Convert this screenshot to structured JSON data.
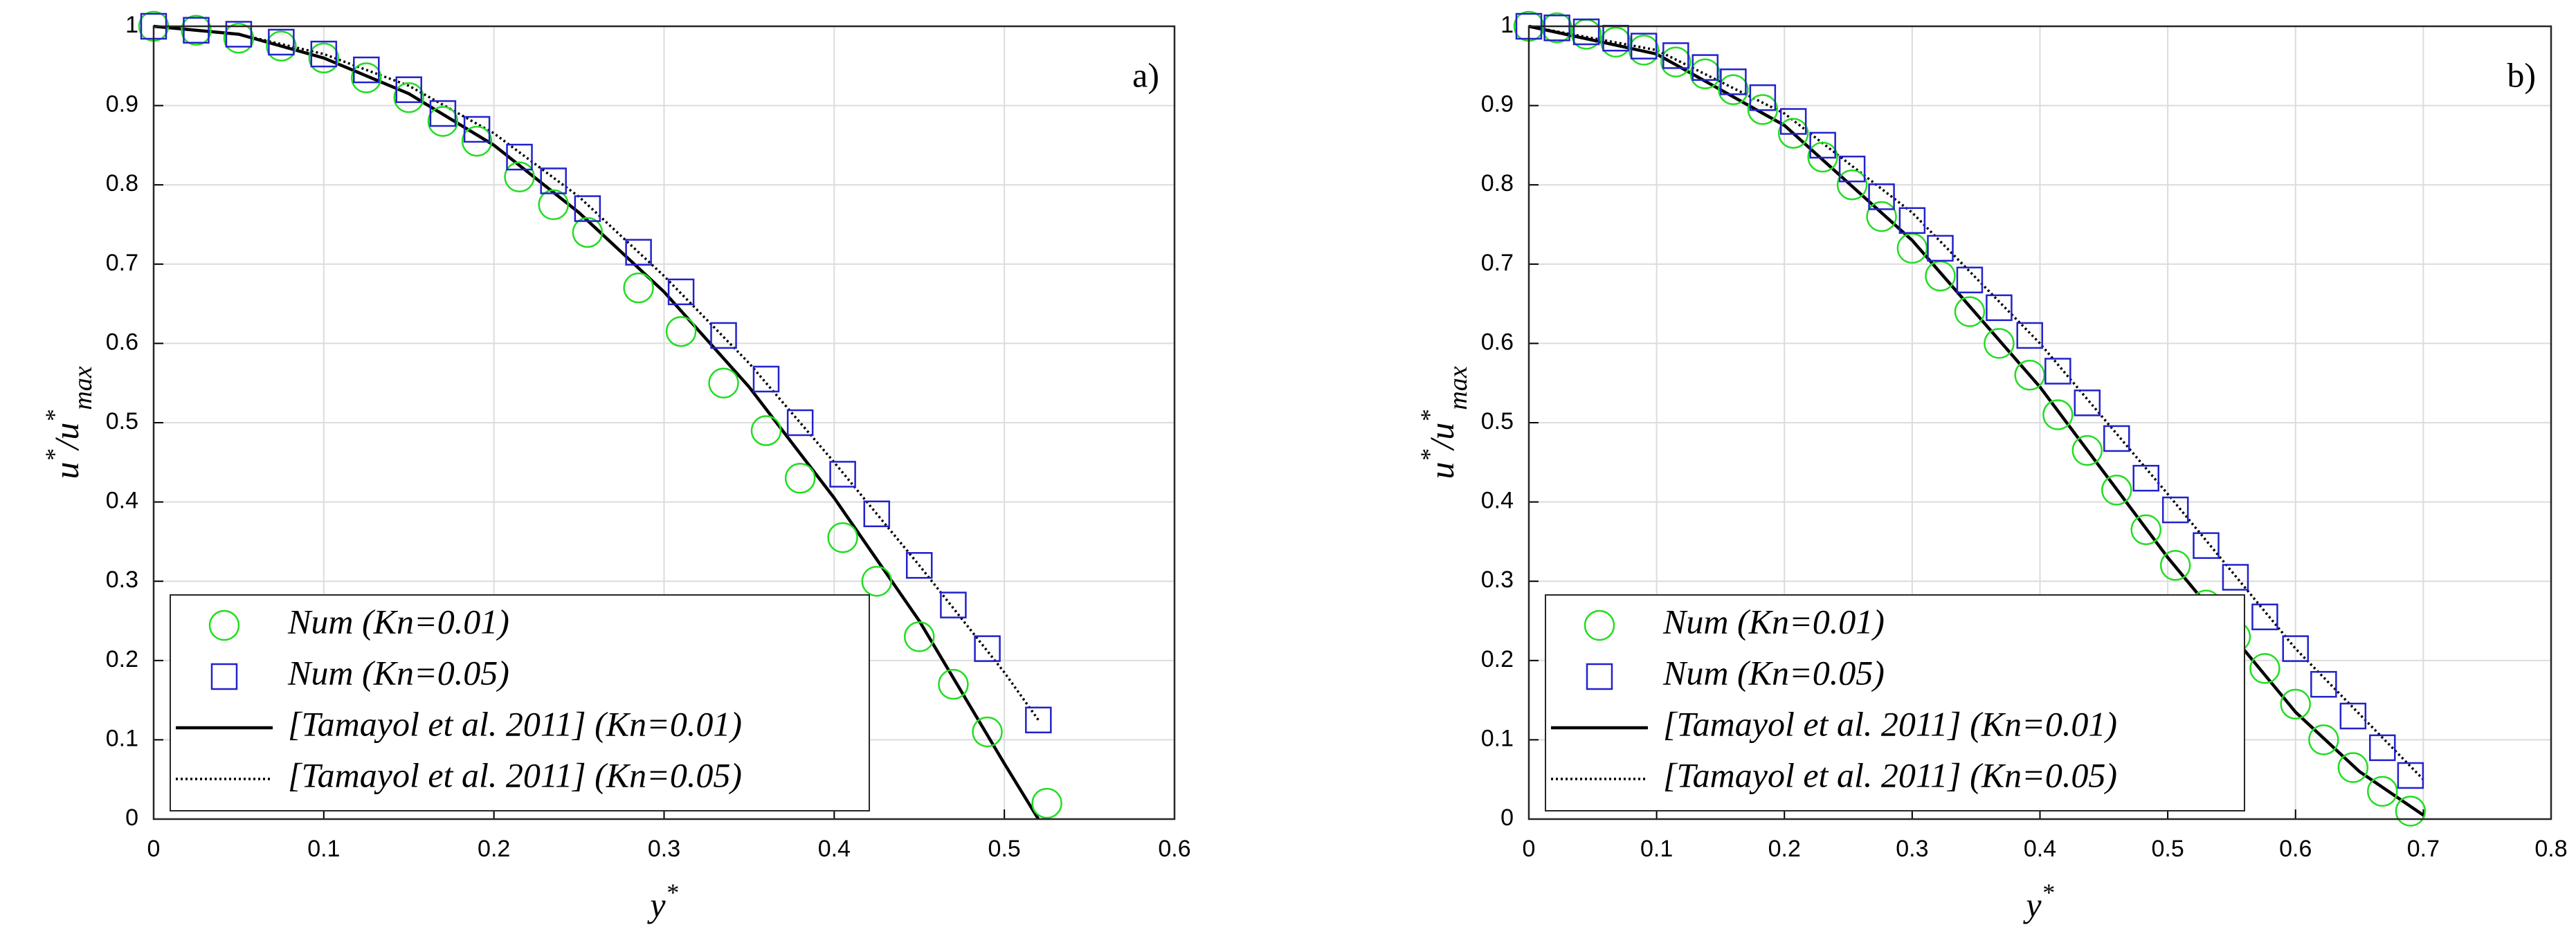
{
  "chart_data": [
    {
      "type": "line",
      "panel_label": "a)",
      "xlabel_parts": [
        "y",
        "*"
      ],
      "ylabel_parts": [
        "u",
        "*",
        "/u",
        "*",
        "max"
      ],
      "xlim": [
        0,
        0.6
      ],
      "xticks": [
        0,
        0.1,
        0.2,
        0.3,
        0.4,
        0.5,
        0.6
      ],
      "ylim": [
        0,
        1
      ],
      "yticks": [
        0,
        0.1,
        0.2,
        0.3,
        0.4,
        0.5,
        0.6,
        0.7,
        0.8,
        0.9,
        1
      ],
      "grid": true,
      "legend": "lower left",
      "series": [
        {
          "name": "Num (Kn=0.01)",
          "mode": "markers",
          "marker": "circle",
          "color": "#22dd22",
          "x": [
            0,
            0.025,
            0.05,
            0.075,
            0.1,
            0.125,
            0.15,
            0.17,
            0.19,
            0.215,
            0.235,
            0.255,
            0.285,
            0.31,
            0.335,
            0.36,
            0.38,
            0.405,
            0.425,
            0.45,
            0.47,
            0.49,
            0.525
          ],
          "values": [
            1,
            0.995,
            0.985,
            0.975,
            0.96,
            0.935,
            0.91,
            0.88,
            0.855,
            0.81,
            0.775,
            0.74,
            0.67,
            0.615,
            0.55,
            0.49,
            0.43,
            0.355,
            0.3,
            0.23,
            0.17,
            0.11,
            0.02
          ]
        },
        {
          "name": "Num (Kn=0.05)",
          "mode": "markers",
          "marker": "square",
          "color": "#2222cc",
          "x": [
            0,
            0.025,
            0.05,
            0.075,
            0.1,
            0.125,
            0.15,
            0.17,
            0.19,
            0.215,
            0.235,
            0.255,
            0.285,
            0.31,
            0.335,
            0.36,
            0.38,
            0.405,
            0.425,
            0.45,
            0.47,
            0.49,
            0.52
          ],
          "values": [
            1,
            0.995,
            0.99,
            0.98,
            0.965,
            0.945,
            0.92,
            0.89,
            0.87,
            0.835,
            0.805,
            0.77,
            0.715,
            0.665,
            0.61,
            0.555,
            0.5,
            0.435,
            0.385,
            0.32,
            0.27,
            0.215,
            0.125
          ]
        },
        {
          "name": "[Tamayol et al. 2011] (Kn=0.01)",
          "mode": "line",
          "dash": "solid",
          "color": "#000000",
          "x": [
            0,
            0.05,
            0.1,
            0.15,
            0.2,
            0.25,
            0.3,
            0.35,
            0.4,
            0.45,
            0.5,
            0.52
          ],
          "values": [
            1,
            0.99,
            0.96,
            0.915,
            0.85,
            0.765,
            0.665,
            0.545,
            0.405,
            0.25,
            0.07,
            0
          ]
        },
        {
          "name": "[Tamayol et al. 2011] (Kn=0.05)",
          "mode": "line",
          "dash": "dotted",
          "color": "#000000",
          "x": [
            0,
            0.05,
            0.1,
            0.15,
            0.2,
            0.25,
            0.3,
            0.35,
            0.4,
            0.45,
            0.5,
            0.52
          ],
          "values": [
            1,
            0.99,
            0.965,
            0.925,
            0.865,
            0.785,
            0.685,
            0.575,
            0.45,
            0.32,
            0.185,
            0.125
          ]
        }
      ]
    },
    {
      "type": "line",
      "panel_label": "b)",
      "xlabel_parts": [
        "y",
        "*"
      ],
      "ylabel_parts": [
        "u",
        "*",
        "/u",
        "*",
        "max"
      ],
      "xlim": [
        0,
        0.8
      ],
      "xticks": [
        0,
        0.1,
        0.2,
        0.3,
        0.4,
        0.5,
        0.6,
        0.7,
        0.8
      ],
      "ylim": [
        0,
        1
      ],
      "yticks": [
        0,
        0.1,
        0.2,
        0.3,
        0.4,
        0.5,
        0.6,
        0.7,
        0.8,
        0.9,
        1
      ],
      "grid": true,
      "legend": "lower left",
      "series": [
        {
          "name": "Num (Kn=0.01)",
          "mode": "markers",
          "marker": "circle",
          "color": "#22dd22",
          "x": [
            0,
            0.022,
            0.045,
            0.068,
            0.09,
            0.115,
            0.138,
            0.16,
            0.183,
            0.207,
            0.23,
            0.253,
            0.276,
            0.3,
            0.322,
            0.345,
            0.368,
            0.392,
            0.414,
            0.437,
            0.46,
            0.483,
            0.506,
            0.53,
            0.553,
            0.576,
            0.6,
            0.622,
            0.645,
            0.668,
            0.69
          ],
          "values": [
            1,
            0.998,
            0.99,
            0.98,
            0.97,
            0.955,
            0.94,
            0.92,
            0.895,
            0.865,
            0.835,
            0.8,
            0.76,
            0.72,
            0.685,
            0.64,
            0.6,
            0.56,
            0.51,
            0.465,
            0.415,
            0.365,
            0.32,
            0.27,
            0.23,
            0.19,
            0.145,
            0.1,
            0.065,
            0.035,
            0.01
          ]
        },
        {
          "name": "Num (Kn=0.05)",
          "mode": "markers",
          "marker": "square",
          "color": "#2222cc",
          "x": [
            0,
            0.022,
            0.045,
            0.068,
            0.09,
            0.115,
            0.138,
            0.16,
            0.183,
            0.207,
            0.23,
            0.253,
            0.276,
            0.3,
            0.322,
            0.345,
            0.368,
            0.392,
            0.414,
            0.437,
            0.46,
            0.483,
            0.506,
            0.53,
            0.553,
            0.576,
            0.6,
            0.622,
            0.645,
            0.668,
            0.69
          ],
          "values": [
            1,
            0.998,
            0.993,
            0.985,
            0.975,
            0.963,
            0.948,
            0.93,
            0.91,
            0.88,
            0.85,
            0.82,
            0.785,
            0.755,
            0.72,
            0.68,
            0.645,
            0.61,
            0.565,
            0.525,
            0.48,
            0.43,
            0.39,
            0.345,
            0.305,
            0.255,
            0.215,
            0.17,
            0.13,
            0.09,
            0.055
          ]
        },
        {
          "name": "[Tamayol et al. 2011] (Kn=0.01)",
          "mode": "line",
          "dash": "solid",
          "color": "#000000",
          "x": [
            0,
            0.1,
            0.2,
            0.3,
            0.4,
            0.5,
            0.6,
            0.65,
            0.7
          ],
          "values": [
            1,
            0.965,
            0.875,
            0.73,
            0.545,
            0.33,
            0.135,
            0.06,
            0.005
          ]
        },
        {
          "name": "[Tamayol et al. 2011] (Kn=0.05)",
          "mode": "line",
          "dash": "dotted",
          "color": "#000000",
          "x": [
            0,
            0.1,
            0.2,
            0.3,
            0.4,
            0.5,
            0.6,
            0.7
          ],
          "values": [
            1,
            0.97,
            0.89,
            0.765,
            0.6,
            0.41,
            0.215,
            0.05
          ]
        }
      ]
    }
  ]
}
